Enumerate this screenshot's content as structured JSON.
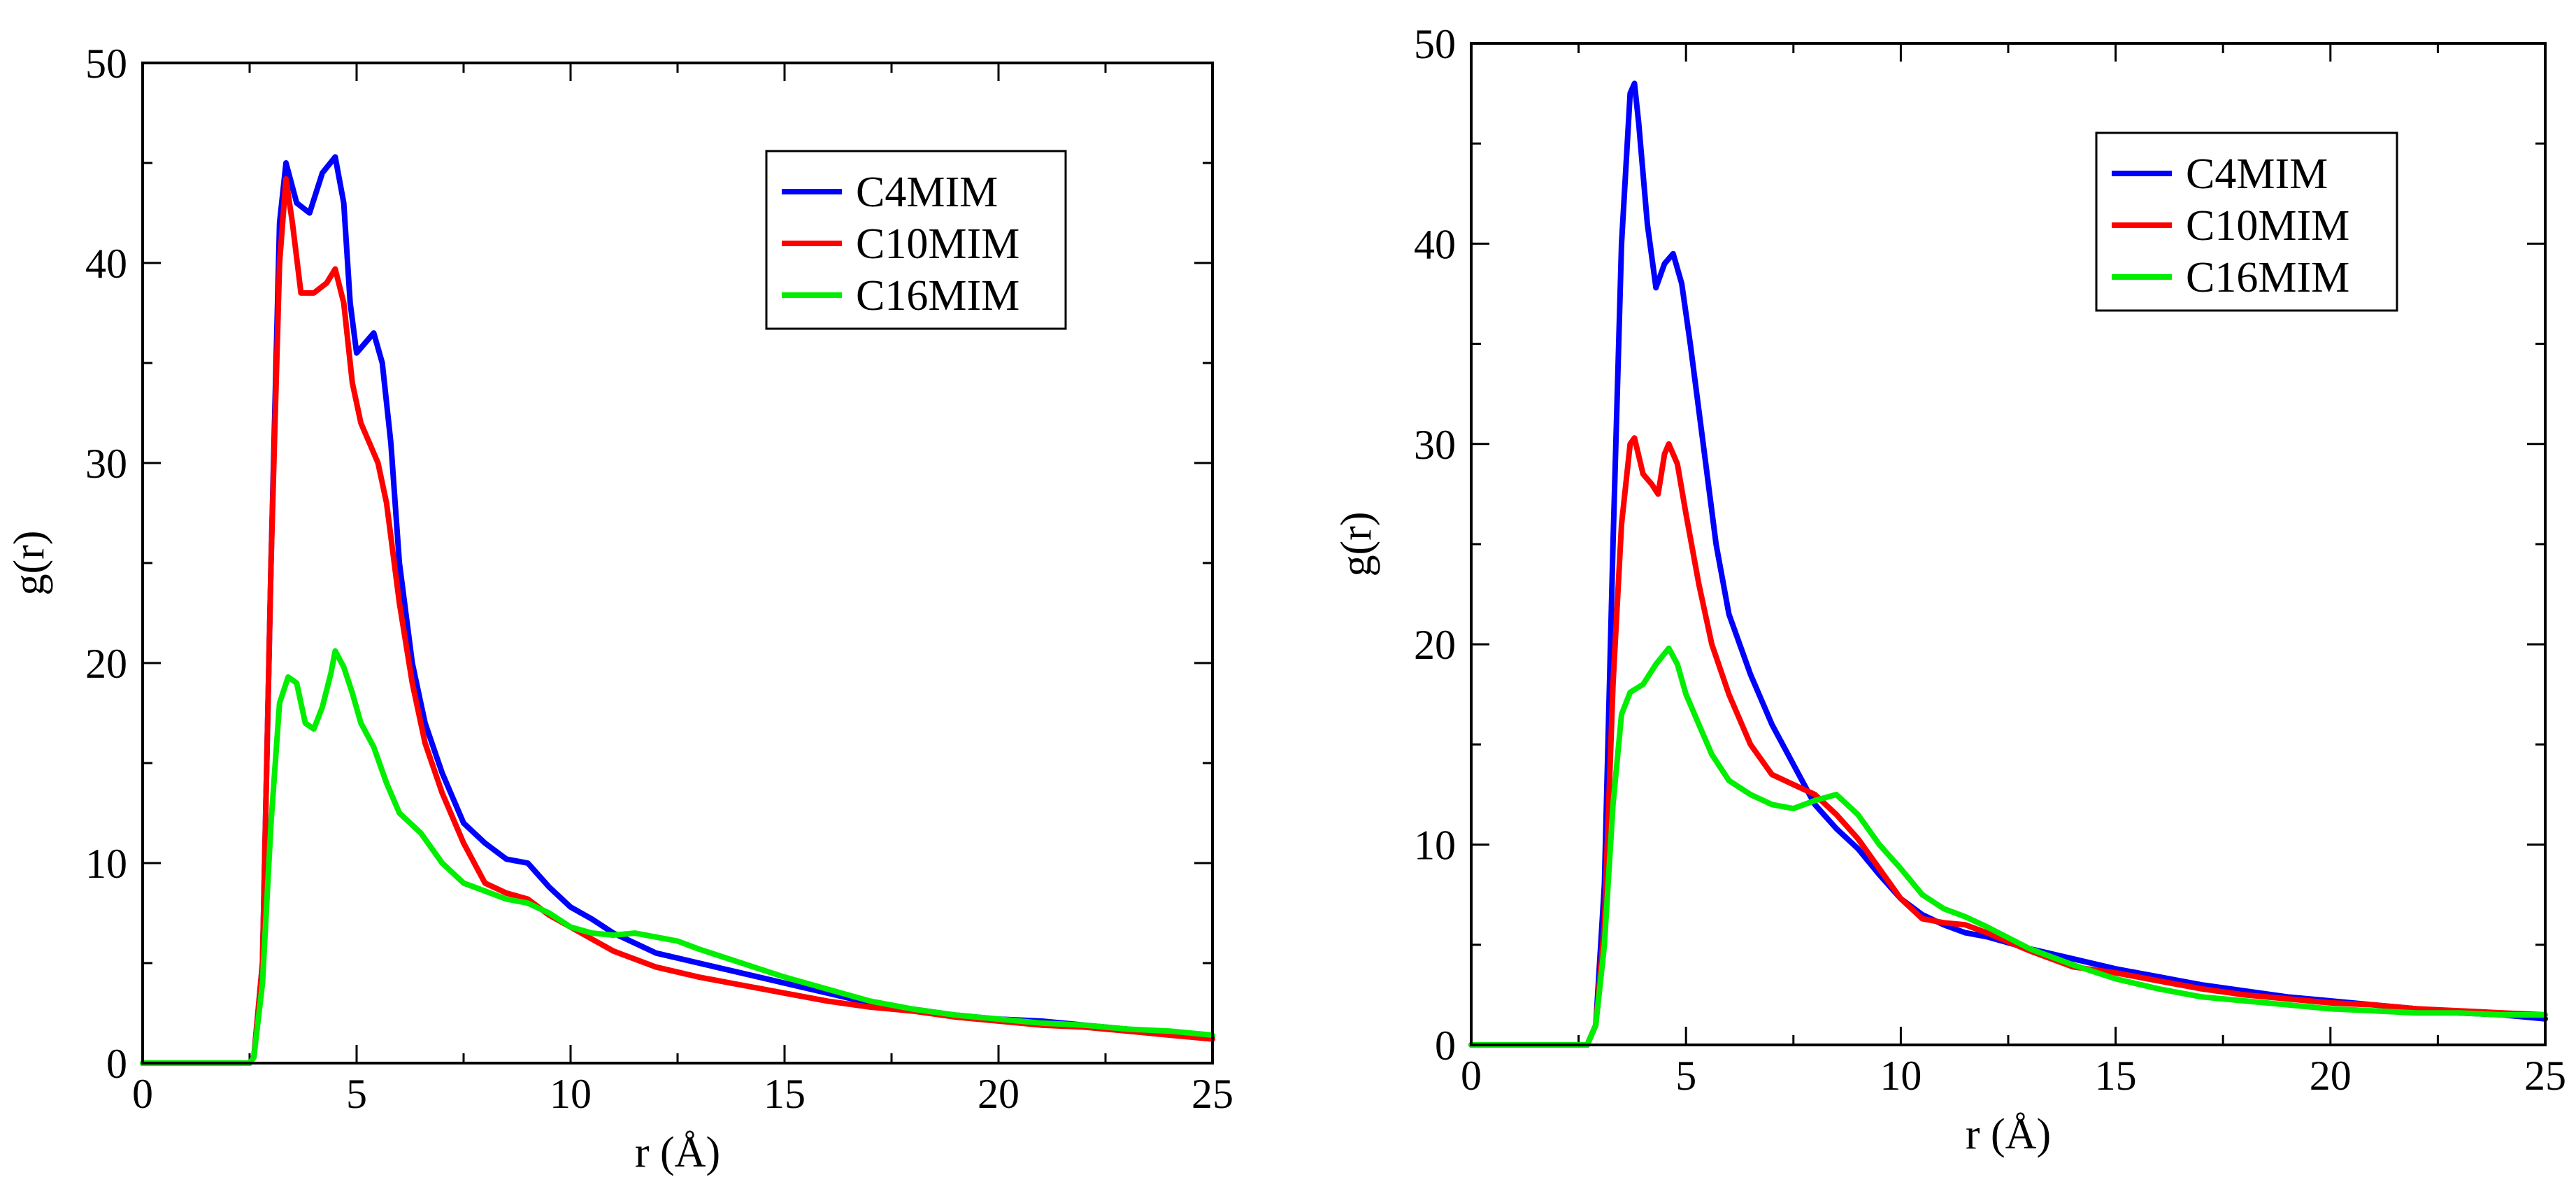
{
  "chart_data": [
    {
      "type": "line",
      "title": "",
      "xlabel": "r (Å)",
      "ylabel": "g(r)",
      "xlim": [
        0,
        25
      ],
      "ylim": [
        0,
        50
      ],
      "xticks": [
        0,
        5,
        10,
        15,
        20,
        25
      ],
      "yticks": [
        0,
        10,
        20,
        30,
        40,
        50
      ],
      "grid": false,
      "legend_position": "top-right",
      "series": [
        {
          "name": "C4MIM",
          "color": "#0000ff",
          "points": [
            [
              0,
              0
            ],
            [
              2.5,
              0
            ],
            [
              2.6,
              0.3
            ],
            [
              2.8,
              5
            ],
            [
              3.0,
              25
            ],
            [
              3.2,
              42
            ],
            [
              3.35,
              45
            ],
            [
              3.6,
              43
            ],
            [
              3.9,
              42.5
            ],
            [
              4.2,
              44.5
            ],
            [
              4.5,
              45.3
            ],
            [
              4.7,
              43
            ],
            [
              4.85,
              38
            ],
            [
              5.0,
              35.5
            ],
            [
              5.2,
              36
            ],
            [
              5.4,
              36.5
            ],
            [
              5.6,
              35
            ],
            [
              5.8,
              31
            ],
            [
              6.0,
              25
            ],
            [
              6.3,
              20
            ],
            [
              6.6,
              17
            ],
            [
              7.0,
              14.5
            ],
            [
              7.5,
              12
            ],
            [
              8.0,
              11
            ],
            [
              8.5,
              10.2
            ],
            [
              9.0,
              10
            ],
            [
              9.5,
              8.8
            ],
            [
              10,
              7.8
            ],
            [
              10.5,
              7.2
            ],
            [
              11,
              6.5
            ],
            [
              11.5,
              6
            ],
            [
              12,
              5.5
            ],
            [
              13,
              5
            ],
            [
              14,
              4.5
            ],
            [
              15,
              4
            ],
            [
              16,
              3.5
            ],
            [
              17,
              3
            ],
            [
              18,
              2.7
            ],
            [
              19,
              2.4
            ],
            [
              20,
              2.2
            ],
            [
              21,
              2.1
            ],
            [
              22,
              1.9
            ],
            [
              23,
              1.7
            ],
            [
              24,
              1.5
            ],
            [
              25,
              1.3
            ]
          ]
        },
        {
          "name": "C10MIM",
          "color": "#ff0000",
          "points": [
            [
              0,
              0
            ],
            [
              2.5,
              0
            ],
            [
              2.6,
              0.3
            ],
            [
              2.8,
              5
            ],
            [
              3.0,
              25
            ],
            [
              3.2,
              40
            ],
            [
              3.35,
              44.2
            ],
            [
              3.5,
              42
            ],
            [
              3.7,
              38.5
            ],
            [
              4.0,
              38.5
            ],
            [
              4.3,
              39
            ],
            [
              4.5,
              39.7
            ],
            [
              4.7,
              38
            ],
            [
              4.9,
              34
            ],
            [
              5.1,
              32
            ],
            [
              5.3,
              31
            ],
            [
              5.5,
              30
            ],
            [
              5.7,
              28
            ],
            [
              6.0,
              23
            ],
            [
              6.3,
              19
            ],
            [
              6.6,
              16
            ],
            [
              7.0,
              13.5
            ],
            [
              7.5,
              11
            ],
            [
              8.0,
              9
            ],
            [
              8.5,
              8.5
            ],
            [
              9.0,
              8.2
            ],
            [
              9.5,
              7.4
            ],
            [
              10,
              6.8
            ],
            [
              10.5,
              6.2
            ],
            [
              11,
              5.6
            ],
            [
              11.5,
              5.2
            ],
            [
              12,
              4.8
            ],
            [
              13,
              4.3
            ],
            [
              14,
              3.9
            ],
            [
              15,
              3.5
            ],
            [
              16,
              3.1
            ],
            [
              17,
              2.8
            ],
            [
              18,
              2.6
            ],
            [
              19,
              2.3
            ],
            [
              20,
              2.1
            ],
            [
              21,
              1.9
            ],
            [
              22,
              1.8
            ],
            [
              23,
              1.6
            ],
            [
              24,
              1.4
            ],
            [
              25,
              1.2
            ]
          ]
        },
        {
          "name": "C16MIM",
          "color": "#00ee00",
          "points": [
            [
              0,
              0
            ],
            [
              2.5,
              0
            ],
            [
              2.6,
              0.3
            ],
            [
              2.8,
              4
            ],
            [
              3.0,
              12
            ],
            [
              3.2,
              18
            ],
            [
              3.4,
              19.3
            ],
            [
              3.6,
              19
            ],
            [
              3.8,
              17
            ],
            [
              4.0,
              16.7
            ],
            [
              4.2,
              17.8
            ],
            [
              4.4,
              19.5
            ],
            [
              4.5,
              20.6
            ],
            [
              4.7,
              19.8
            ],
            [
              4.9,
              18.5
            ],
            [
              5.1,
              17
            ],
            [
              5.4,
              15.8
            ],
            [
              5.7,
              14
            ],
            [
              6.0,
              12.5
            ],
            [
              6.5,
              11.5
            ],
            [
              7.0,
              10
            ],
            [
              7.5,
              9
            ],
            [
              8.0,
              8.6
            ],
            [
              8.5,
              8.2
            ],
            [
              9.0,
              8
            ],
            [
              9.5,
              7.5
            ],
            [
              10,
              6.8
            ],
            [
              10.5,
              6.5
            ],
            [
              11,
              6.4
            ],
            [
              11.5,
              6.5
            ],
            [
              12,
              6.3
            ],
            [
              12.5,
              6.1
            ],
            [
              13,
              5.7
            ],
            [
              14,
              5
            ],
            [
              15,
              4.3
            ],
            [
              16,
              3.7
            ],
            [
              17,
              3.1
            ],
            [
              18,
              2.7
            ],
            [
              19,
              2.4
            ],
            [
              20,
              2.2
            ],
            [
              21,
              2.0
            ],
            [
              22,
              1.9
            ],
            [
              23,
              1.7
            ],
            [
              24,
              1.6
            ],
            [
              25,
              1.4
            ]
          ]
        }
      ]
    },
    {
      "type": "line",
      "title": "",
      "xlabel": "r (Å)",
      "ylabel": "g(r)",
      "xlim": [
        0,
        25
      ],
      "ylim": [
        0,
        50
      ],
      "xticks": [
        0,
        5,
        10,
        15,
        20,
        25
      ],
      "yticks": [
        0,
        10,
        20,
        30,
        40,
        50
      ],
      "grid": false,
      "legend_position": "top-right",
      "series": [
        {
          "name": "C4MIM",
          "color": "#0000ff",
          "points": [
            [
              0,
              0
            ],
            [
              2.7,
              0
            ],
            [
              2.9,
              1
            ],
            [
              3.1,
              8
            ],
            [
              3.3,
              25
            ],
            [
              3.5,
              40
            ],
            [
              3.7,
              47.5
            ],
            [
              3.8,
              48
            ],
            [
              3.9,
              46
            ],
            [
              4.1,
              41
            ],
            [
              4.3,
              37.8
            ],
            [
              4.5,
              39
            ],
            [
              4.7,
              39.5
            ],
            [
              4.9,
              38
            ],
            [
              5.1,
              35
            ],
            [
              5.4,
              30
            ],
            [
              5.7,
              25
            ],
            [
              6.0,
              21.5
            ],
            [
              6.5,
              18.5
            ],
            [
              7.0,
              16
            ],
            [
              7.5,
              14
            ],
            [
              8.0,
              12
            ],
            [
              8.5,
              10.8
            ],
            [
              9.0,
              9.8
            ],
            [
              9.5,
              8.5
            ],
            [
              10,
              7.3
            ],
            [
              10.5,
              6.5
            ],
            [
              11,
              6
            ],
            [
              11.5,
              5.6
            ],
            [
              12,
              5.4
            ],
            [
              13,
              4.8
            ],
            [
              14,
              4.3
            ],
            [
              15,
              3.8
            ],
            [
              16,
              3.4
            ],
            [
              17,
              3.0
            ],
            [
              18,
              2.7
            ],
            [
              19,
              2.4
            ],
            [
              20,
              2.2
            ],
            [
              21,
              2.0
            ],
            [
              22,
              1.8
            ],
            [
              23,
              1.6
            ],
            [
              24,
              1.5
            ],
            [
              25,
              1.3
            ]
          ]
        },
        {
          "name": "C10MIM",
          "color": "#ff0000",
          "points": [
            [
              0,
              0
            ],
            [
              2.7,
              0
            ],
            [
              2.9,
              1
            ],
            [
              3.1,
              6
            ],
            [
              3.3,
              18
            ],
            [
              3.5,
              26
            ],
            [
              3.7,
              30
            ],
            [
              3.8,
              30.3
            ],
            [
              4.0,
              28.5
            ],
            [
              4.2,
              28
            ],
            [
              4.35,
              27.5
            ],
            [
              4.5,
              29.5
            ],
            [
              4.6,
              30
            ],
            [
              4.8,
              29
            ],
            [
              5.0,
              26.5
            ],
            [
              5.3,
              23
            ],
            [
              5.6,
              20
            ],
            [
              6.0,
              17.5
            ],
            [
              6.5,
              15
            ],
            [
              7.0,
              13.5
            ],
            [
              7.5,
              13
            ],
            [
              8.0,
              12.5
            ],
            [
              8.5,
              11.5
            ],
            [
              9.0,
              10.3
            ],
            [
              9.5,
              8.8
            ],
            [
              10,
              7.3
            ],
            [
              10.5,
              6.3
            ],
            [
              11,
              6.1
            ],
            [
              11.5,
              6
            ],
            [
              12,
              5.6
            ],
            [
              13,
              4.7
            ],
            [
              14,
              3.9
            ],
            [
              15,
              3.6
            ],
            [
              16,
              3.2
            ],
            [
              17,
              2.8
            ],
            [
              18,
              2.5
            ],
            [
              19,
              2.3
            ],
            [
              20,
              2.1
            ],
            [
              21,
              2.0
            ],
            [
              22,
              1.8
            ],
            [
              23,
              1.7
            ],
            [
              24,
              1.6
            ],
            [
              25,
              1.5
            ]
          ]
        },
        {
          "name": "C16MIM",
          "color": "#00ee00",
          "points": [
            [
              0,
              0
            ],
            [
              2.7,
              0
            ],
            [
              2.9,
              1
            ],
            [
              3.1,
              5
            ],
            [
              3.3,
              12
            ],
            [
              3.5,
              16.5
            ],
            [
              3.7,
              17.6
            ],
            [
              4.0,
              18
            ],
            [
              4.3,
              19
            ],
            [
              4.6,
              19.8
            ],
            [
              4.8,
              19
            ],
            [
              5.0,
              17.5
            ],
            [
              5.3,
              16
            ],
            [
              5.6,
              14.5
            ],
            [
              6.0,
              13.2
            ],
            [
              6.5,
              12.5
            ],
            [
              7.0,
              12
            ],
            [
              7.5,
              11.8
            ],
            [
              8.0,
              12.2
            ],
            [
              8.5,
              12.5
            ],
            [
              9.0,
              11.5
            ],
            [
              9.5,
              10
            ],
            [
              10,
              8.8
            ],
            [
              10.5,
              7.5
            ],
            [
              11,
              6.8
            ],
            [
              11.5,
              6.4
            ],
            [
              12,
              5.9
            ],
            [
              13,
              4.8
            ],
            [
              14,
              4.0
            ],
            [
              15,
              3.3
            ],
            [
              16,
              2.8
            ],
            [
              17,
              2.4
            ],
            [
              18,
              2.2
            ],
            [
              19,
              2.0
            ],
            [
              20,
              1.8
            ],
            [
              21,
              1.7
            ],
            [
              22,
              1.6
            ],
            [
              23,
              1.6
            ],
            [
              24,
              1.5
            ],
            [
              25,
              1.5
            ]
          ]
        }
      ]
    }
  ]
}
